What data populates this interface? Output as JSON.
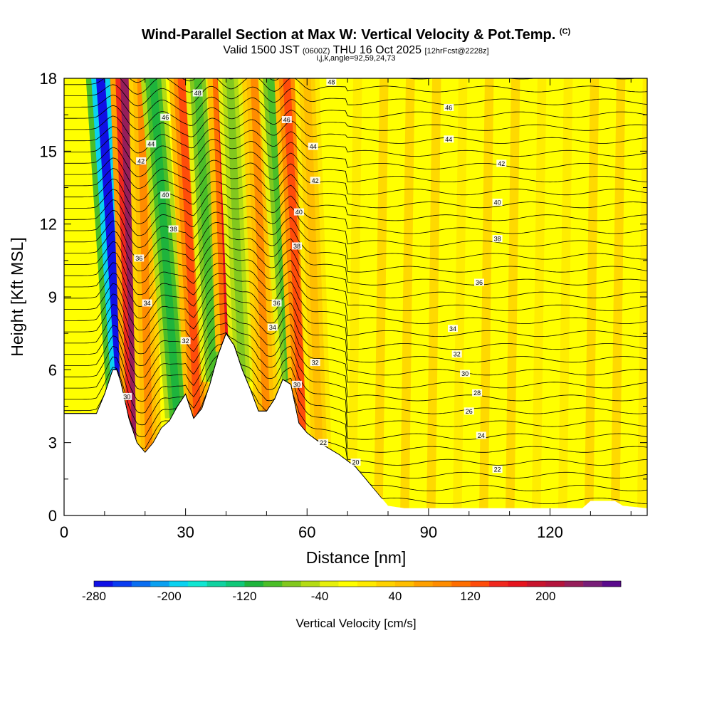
{
  "title": {
    "main": "Wind-Parallel Section at Max W: Vertical Velocity & Pot.Temp.",
    "copyright": "(C)",
    "valid_prefix": "Valid 1500 JST",
    "valid_utc": "(0600Z)",
    "valid_date": "THU 16 Oct 2025",
    "forecast": "[12hrFcst@2228z]",
    "params": "i,j,k,angle=92,59,24,73"
  },
  "chart_data": {
    "type": "heatmap",
    "title": "Wind-Parallel Section at Max W: Vertical Velocity & Pot.Temp.",
    "xlabel": "Distance [nm]",
    "ylabel": "Height [Kft MSL]",
    "xlim": [
      0,
      144
    ],
    "ylim": [
      0,
      18
    ],
    "xticks": [
      0,
      30,
      60,
      90,
      120
    ],
    "yticks": [
      0,
      3,
      6,
      9,
      12,
      15,
      18
    ],
    "grid": false,
    "terrain_profile": {
      "x": [
        0,
        4,
        8,
        10,
        12,
        13,
        14,
        16,
        18,
        20,
        22,
        24,
        26,
        28,
        30,
        32,
        34,
        36,
        38,
        40,
        42,
        44,
        46,
        48,
        50,
        52,
        54,
        56,
        58,
        60,
        64,
        68,
        72,
        76,
        80,
        84,
        90,
        100,
        110,
        120,
        128,
        130,
        134,
        136,
        138,
        144
      ],
      "height_kft": [
        4.2,
        4.2,
        4.2,
        5.0,
        6.0,
        6.0,
        5.5,
        4.0,
        3.0,
        2.6,
        3.0,
        3.6,
        3.9,
        4.5,
        5.0,
        4.0,
        4.4,
        5.4,
        6.6,
        7.5,
        7.0,
        6.0,
        5.2,
        4.3,
        4.3,
        4.8,
        5.6,
        5.4,
        3.8,
        3.4,
        2.9,
        2.5,
        2.0,
        1.2,
        0.4,
        0.3,
        0.3,
        0.3,
        0.3,
        0.3,
        0.3,
        0.6,
        0.6,
        0.6,
        0.4,
        0.3
      ]
    },
    "vertical_velocity_bands": [
      {
        "x_base": 14,
        "x_top": 9,
        "w_cms": -280
      },
      {
        "x_base": 18,
        "x_top": 15,
        "w_cms": 220
      },
      {
        "x_base": 21,
        "x_top": 19,
        "w_cms": 80
      },
      {
        "x_base": 28,
        "x_top": 22,
        "w_cms": -120
      },
      {
        "x_base": 33,
        "x_top": 29,
        "w_cms": 120
      },
      {
        "x_base": 37,
        "x_top": 33,
        "w_cms": -100
      },
      {
        "x_base": 41,
        "x_top": 39,
        "w_cms": 160
      },
      {
        "x_base": 44,
        "x_top": 41,
        "w_cms": -80
      },
      {
        "x_base": 50,
        "x_top": 47,
        "w_cms": 80
      },
      {
        "x_base": 56,
        "x_top": 51,
        "w_cms": -100
      },
      {
        "x_base": 59,
        "x_top": 55,
        "w_cms": 130
      },
      {
        "x_base": 63,
        "x_top": 60,
        "w_cms": 50
      }
    ],
    "theta_contours": {
      "levels": [
        20,
        22,
        24,
        26,
        28,
        30,
        32,
        34,
        36,
        38,
        40,
        42,
        44,
        46,
        48
      ],
      "labels": [
        {
          "text": "48",
          "x": 66,
          "h": 17.85
        },
        {
          "text": "48",
          "x": 33,
          "h": 17.4
        },
        {
          "text": "46",
          "x": 95,
          "h": 16.8
        },
        {
          "text": "46",
          "x": 25,
          "h": 16.4
        },
        {
          "text": "46",
          "x": 55,
          "h": 16.3
        },
        {
          "text": "44",
          "x": 95,
          "h": 15.5
        },
        {
          "text": "44",
          "x": 21.5,
          "h": 15.3
        },
        {
          "text": "44",
          "x": 61.5,
          "h": 15.2
        },
        {
          "text": "42",
          "x": 108,
          "h": 14.5
        },
        {
          "text": "42",
          "x": 19,
          "h": 14.6
        },
        {
          "text": "42",
          "x": 62,
          "h": 13.8
        },
        {
          "text": "40",
          "x": 107,
          "h": 12.9
        },
        {
          "text": "40",
          "x": 25,
          "h": 13.2
        },
        {
          "text": "40",
          "x": 58,
          "h": 12.5
        },
        {
          "text": "38",
          "x": 107,
          "h": 11.4
        },
        {
          "text": "38",
          "x": 27,
          "h": 11.8
        },
        {
          "text": "38",
          "x": 57.5,
          "h": 11.1
        },
        {
          "text": "36",
          "x": 102.5,
          "h": 9.6
        },
        {
          "text": "36",
          "x": 18.5,
          "h": 10.6
        },
        {
          "text": "36",
          "x": 52.5,
          "h": 8.75
        },
        {
          "text": "34",
          "x": 96,
          "h": 7.7
        },
        {
          "text": "34",
          "x": 20.5,
          "h": 8.75
        },
        {
          "text": "34",
          "x": 51.5,
          "h": 7.75
        },
        {
          "text": "32",
          "x": 97,
          "h": 6.65
        },
        {
          "text": "32",
          "x": 30,
          "h": 7.2
        },
        {
          "text": "32",
          "x": 62,
          "h": 6.3
        },
        {
          "text": "30",
          "x": 99,
          "h": 5.85
        },
        {
          "text": "30",
          "x": 57.5,
          "h": 5.4
        },
        {
          "text": "30",
          "x": 15.5,
          "h": 4.9
        },
        {
          "text": "28",
          "x": 102,
          "h": 5.05
        },
        {
          "text": "26",
          "x": 100,
          "h": 4.3
        },
        {
          "text": "24",
          "x": 103,
          "h": 3.3
        },
        {
          "text": "22",
          "x": 64,
          "h": 3.0
        },
        {
          "text": "22",
          "x": 107,
          "h": 1.9
        },
        {
          "text": "20",
          "x": 72,
          "h": 2.2
        }
      ]
    },
    "colorbar": {
      "label": "Vertical Velocity [cm/s]",
      "tick_labels": [
        "-280",
        "-200",
        "-120",
        "-40",
        "40",
        "120",
        "200"
      ],
      "min": -280,
      "max": 280,
      "step": 20
    }
  }
}
